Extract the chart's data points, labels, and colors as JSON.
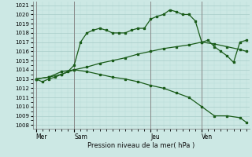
{
  "title": "Pression niveau de la mer( hPa )",
  "bg_color": "#cce8e4",
  "grid_major_color": "#a8ccc8",
  "grid_minor_color": "#b8dcd8",
  "line_color": "#1a5c1a",
  "marker_color": "#1a5c1a",
  "ymin": 1007.6,
  "ymax": 1021.4,
  "yticks": [
    1008,
    1009,
    1010,
    1011,
    1012,
    1013,
    1014,
    1015,
    1016,
    1017,
    1018,
    1019,
    1020,
    1021
  ],
  "xtick_labels": [
    "Mer",
    "Sam",
    "Jeu",
    "Ven"
  ],
  "xtick_positions": [
    0,
    6,
    18,
    26
  ],
  "vline_positions": [
    0,
    6,
    18,
    26
  ],
  "total_points": 34,
  "line1_x": [
    0,
    1,
    2,
    3,
    4,
    5,
    6,
    7,
    8,
    9,
    10,
    11,
    12,
    13,
    14,
    15,
    16,
    17,
    18,
    19,
    20,
    21,
    22,
    23,
    24,
    25,
    26,
    27,
    28,
    29,
    30,
    31,
    32,
    33
  ],
  "line1_y": [
    1013.0,
    1012.7,
    1013.0,
    1013.2,
    1013.5,
    1013.8,
    1014.5,
    1017.0,
    1018.0,
    1018.3,
    1018.5,
    1018.3,
    1018.0,
    1018.0,
    1018.0,
    1018.3,
    1018.5,
    1018.5,
    1019.5,
    1019.8,
    1020.0,
    1020.5,
    1020.3,
    1020.0,
    1020.0,
    1019.3,
    1017.0,
    1017.2,
    1016.5,
    1016.0,
    1015.5,
    1014.8,
    1017.0,
    1017.2
  ],
  "line2_x": [
    0,
    2,
    4,
    6,
    8,
    10,
    12,
    14,
    16,
    18,
    20,
    22,
    24,
    26,
    28,
    30,
    32,
    33
  ],
  "line2_y": [
    1013.0,
    1013.2,
    1013.5,
    1014.0,
    1014.3,
    1014.7,
    1015.0,
    1015.3,
    1015.7,
    1016.0,
    1016.3,
    1016.5,
    1016.7,
    1017.0,
    1016.8,
    1016.5,
    1016.2,
    1016.0
  ],
  "line3_x": [
    0,
    2,
    4,
    6,
    8,
    10,
    12,
    14,
    16,
    18,
    20,
    22,
    24,
    26,
    28,
    30,
    32,
    33
  ],
  "line3_y": [
    1013.0,
    1013.2,
    1013.8,
    1014.0,
    1013.8,
    1013.5,
    1013.2,
    1013.0,
    1012.7,
    1012.3,
    1012.0,
    1011.5,
    1011.0,
    1010.0,
    1009.0,
    1009.0,
    1008.8,
    1008.3
  ]
}
